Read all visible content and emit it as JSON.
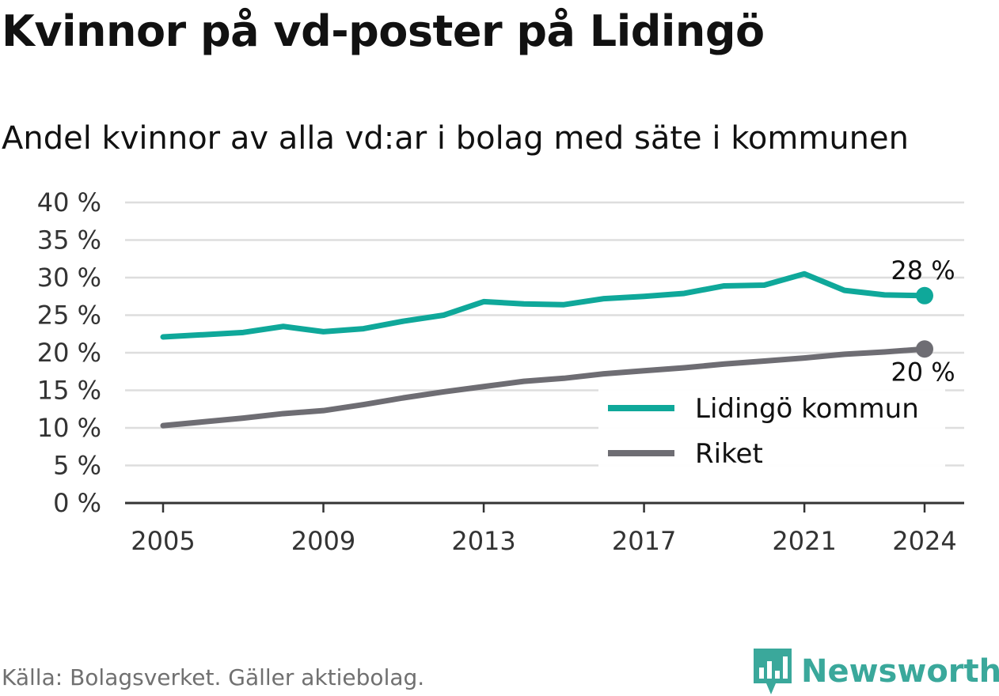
{
  "title": "Kvinnor på vd-poster på Lidingö",
  "subtitle": "Andel kvinnor av alla vd:ar i bolag med säte i kommunen",
  "source": "Källa: Bolagsverket. Gäller aktiebolag.",
  "brand": "Newsworthy",
  "colors": {
    "lidingo": "#0fa89a",
    "riket": "#6e6d73",
    "grid": "#dddddd",
    "axis": "#333333"
  },
  "chart_data": {
    "type": "line",
    "ylim": [
      0,
      40
    ],
    "yticks": [
      0,
      5,
      10,
      15,
      20,
      25,
      30,
      35,
      40
    ],
    "ytick_labels": [
      "0 %",
      "5 %",
      "10 %",
      "15 %",
      "20 %",
      "25 %",
      "30 %",
      "35 %",
      "40 %"
    ],
    "xlim": [
      2005,
      2024
    ],
    "xticks": [
      2005,
      2009,
      2013,
      2017,
      2021,
      2024
    ],
    "xtick_labels": [
      "2005",
      "2009",
      "2013",
      "2017",
      "2021",
      "2024"
    ],
    "x": [
      2005,
      2006,
      2007,
      2008,
      2009,
      2010,
      2011,
      2012,
      2013,
      2014,
      2015,
      2016,
      2017,
      2018,
      2019,
      2020,
      2021,
      2022,
      2023,
      2024
    ],
    "series": [
      {
        "name": "Lidingö kommun",
        "color_key": "lidingo",
        "end_label": "28 %",
        "values": [
          22.1,
          22.4,
          22.7,
          23.5,
          22.8,
          23.2,
          24.2,
          25.0,
          26.8,
          26.5,
          26.4,
          27.2,
          27.5,
          27.9,
          28.9,
          29.0,
          30.5,
          28.3,
          27.7,
          27.6
        ]
      },
      {
        "name": "Riket",
        "color_key": "riket",
        "end_label": "20 %",
        "values": [
          10.3,
          10.8,
          11.3,
          11.9,
          12.3,
          13.1,
          14.0,
          14.8,
          15.5,
          16.2,
          16.6,
          17.2,
          17.6,
          18.0,
          18.5,
          18.9,
          19.3,
          19.8,
          20.1,
          20.5
        ]
      }
    ],
    "legend_position": "bottom-right",
    "grid": true
  }
}
